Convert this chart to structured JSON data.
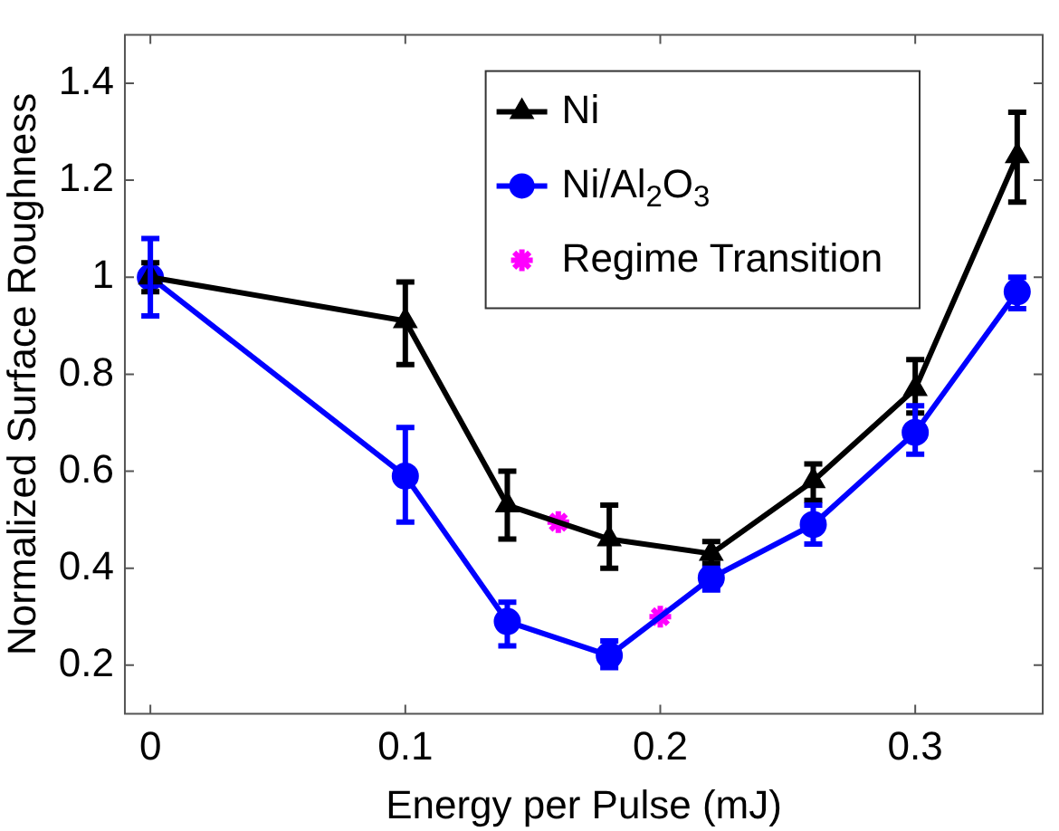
{
  "chart_data": {
    "type": "line",
    "xlabel": "Energy per Pulse (mJ)",
    "ylabel": "Normalized Surface Roughness",
    "xlim": [
      -0.01,
      0.35
    ],
    "xticks": [
      0,
      0.1,
      0.2,
      0.3
    ],
    "ylim": [
      0.1,
      1.5
    ],
    "yticks": [
      0.2,
      0.4,
      0.6,
      0.8,
      1,
      1.2,
      1.4
    ],
    "grid": false,
    "legend": "top right",
    "series": [
      {
        "name": "Ni",
        "color": "#000000",
        "marker": "triangle",
        "x": [
          0,
          0.1,
          0.14,
          0.18,
          0.22,
          0.26,
          0.3,
          0.34
        ],
        "values": [
          1.0,
          0.91,
          0.53,
          0.46,
          0.43,
          0.58,
          0.77,
          1.25
        ],
        "errors": [
          [
            0.97,
            1.03
          ],
          [
            0.82,
            0.99
          ],
          [
            0.46,
            0.6
          ],
          [
            0.4,
            0.53
          ],
          [
            0.41,
            0.455
          ],
          [
            0.54,
            0.615
          ],
          [
            0.72,
            0.83
          ],
          [
            1.155,
            1.34
          ]
        ]
      },
      {
        "name": "Ni/Al$_{2}$O$_{3}$",
        "color": "#0000ff",
        "marker": "circle",
        "x": [
          0,
          0.1,
          0.14,
          0.18,
          0.22,
          0.26,
          0.3,
          0.34
        ],
        "values": [
          1.0,
          0.59,
          0.29,
          0.22,
          0.38,
          0.49,
          0.68,
          0.97
        ],
        "errors": [
          [
            0.92,
            1.08
          ],
          [
            0.495,
            0.69
          ],
          [
            0.24,
            0.33
          ],
          [
            0.195,
            0.25
          ],
          [
            0.355,
            0.4
          ],
          [
            0.45,
            0.53
          ],
          [
            0.635,
            0.735
          ],
          [
            0.935,
            1.0
          ]
        ]
      },
      {
        "name": "Regime Transition",
        "type": "scatter",
        "color": "#ff00ff",
        "marker": "cross",
        "x": [
          0.16,
          0.2
        ],
        "values": [
          0.495,
          0.3
        ]
      }
    ]
  }
}
